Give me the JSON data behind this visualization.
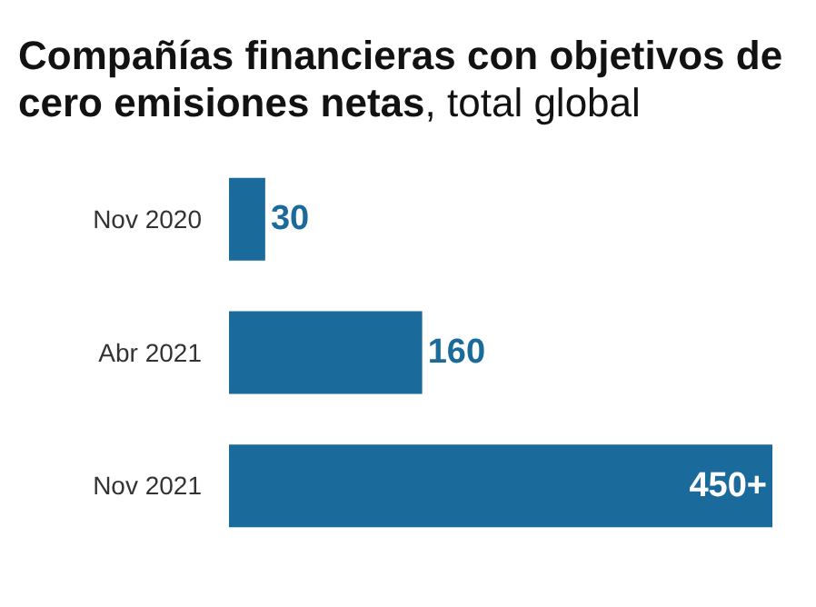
{
  "chart_data": {
    "type": "bar",
    "orientation": "horizontal",
    "title": "Compañías financieras con objetivos de cero emisiones netas, total global",
    "categories": [
      "Nov 2020",
      "Abr 2021",
      "Nov 2021"
    ],
    "values": [
      30,
      160,
      450
    ],
    "value_labels": [
      "30",
      "160",
      "450+"
    ],
    "color": "#1b6a9c"
  }
}
